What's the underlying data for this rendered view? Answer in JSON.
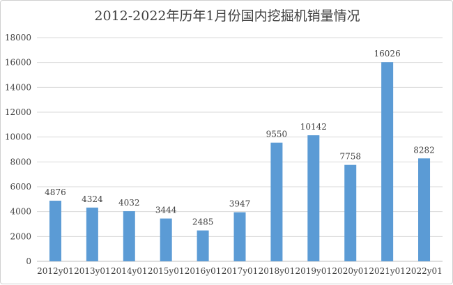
{
  "chart_data": {
    "type": "bar",
    "title": "2012-2022年历年1月份国内挖掘机销量情况",
    "xlabel": "",
    "ylabel": "",
    "categories": [
      "2012y01",
      "2013y01",
      "2014y01",
      "2015y01",
      "2016y01",
      "2017y01",
      "2018y01",
      "2019y01",
      "2020y01",
      "2021y01",
      "2022y01"
    ],
    "values": [
      4876,
      4324,
      4032,
      3444,
      2485,
      3947,
      9550,
      10142,
      7758,
      16026,
      8282
    ],
    "data_labels": [
      "4876",
      "4324",
      "4032",
      "3444",
      "2485",
      "3947",
      "9550",
      "10142",
      "7758",
      "16026",
      "8282"
    ],
    "ylim": [
      0,
      18000
    ],
    "yticks": [
      0,
      2000,
      4000,
      6000,
      8000,
      10000,
      12000,
      14000,
      16000,
      18000
    ],
    "ytick_labels": [
      "0",
      "2000",
      "4000",
      "6000",
      "8000",
      "10000",
      "12000",
      "14000",
      "16000",
      "18000"
    ],
    "grid": true,
    "legend": "none",
    "bar_color": "#5b9bd5"
  }
}
